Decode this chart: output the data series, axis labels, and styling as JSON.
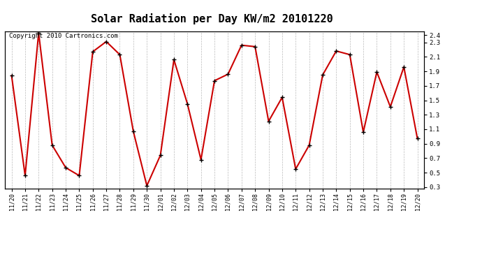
{
  "title": "Solar Radiation per Day KW/m2 20101220",
  "copyright": "Copyright 2010 Cartronics.com",
  "labels": [
    "11/20",
    "11/21",
    "11/22",
    "11/23",
    "11/24",
    "11/25",
    "11/26",
    "11/27",
    "11/28",
    "11/29",
    "11/30",
    "12/01",
    "12/02",
    "12/03",
    "12/04",
    "12/05",
    "12/06",
    "12/07",
    "12/08",
    "12/09",
    "12/10",
    "12/11",
    "12/12",
    "12/13",
    "12/14",
    "12/15",
    "12/16",
    "12/17",
    "12/18",
    "12/19",
    "12/20"
  ],
  "values": [
    1.84,
    0.46,
    2.43,
    0.88,
    0.57,
    0.46,
    2.17,
    2.31,
    2.13,
    1.07,
    0.32,
    0.74,
    2.06,
    1.45,
    0.68,
    1.77,
    1.86,
    2.26,
    2.24,
    1.21,
    1.54,
    0.55,
    0.88,
    1.85,
    2.18,
    2.13,
    1.06,
    1.89,
    1.41,
    1.96,
    0.97
  ],
  "line_color": "#cc0000",
  "marker": "+",
  "marker_color": "#000000",
  "marker_size": 5,
  "line_width": 1.5,
  "ylim": [
    0.28,
    2.45
  ],
  "yticks": [
    0.3,
    0.5,
    0.7,
    0.9,
    1.1,
    1.3,
    1.5,
    1.7,
    1.9,
    2.1,
    2.3
  ],
  "ytick_labels": [
    "0.3",
    "0.5",
    "0.7",
    "0.9",
    "1.1",
    "1.3",
    "1.5",
    "1.7",
    "1.9",
    "2.1",
    "2.3"
  ],
  "extra_ytick": 2.4,
  "extra_ytick_label": "2.4",
  "background_color": "#ffffff",
  "plot_bg_color": "#ffffff",
  "grid_color": "#bbbbbb",
  "title_fontsize": 11,
  "copyright_fontsize": 6.5,
  "tick_fontsize": 6,
  "right_ytick_fontsize": 6.5
}
